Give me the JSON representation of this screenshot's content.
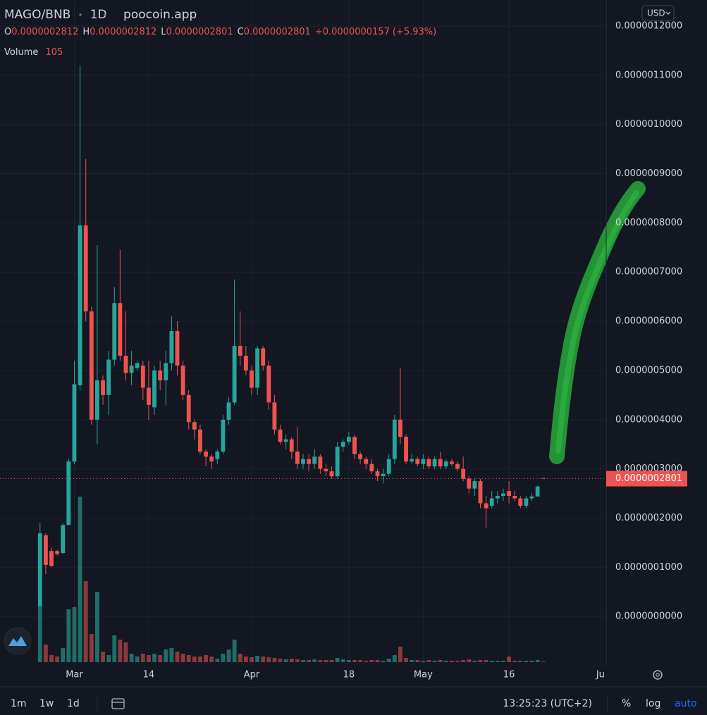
{
  "legend": {
    "symbol": "MAGO/BNB",
    "interval": "1D",
    "source": "poocoin.app",
    "ohlc": [
      {
        "label": "O",
        "value": "0.0000002812"
      },
      {
        "label": "H",
        "value": "0.0000002812"
      },
      {
        "label": "L",
        "value": "0.0000002801"
      },
      {
        "label": "C",
        "value": "0.0000002801"
      }
    ],
    "change": "+0.0000000157",
    "change_pct": "(+5.93%)",
    "volume_label": "Volume"
  },
  "currency": "USD",
  "toolbar": {
    "intervals": [
      "1m",
      "1w",
      "1d"
    ],
    "time": "13:25:23 (UTC+2)",
    "options": [
      "%",
      "log",
      "auto"
    ]
  },
  "chart_data": {
    "type": "candlestick",
    "x": [
      "Feb 23",
      "Feb 24",
      "Feb 25",
      "Feb 26",
      "Feb 27",
      "Feb 28",
      "Mar 1",
      "Mar 2",
      "Mar 3",
      "Mar 4",
      "Mar 5",
      "Mar 6",
      "Mar 7",
      "Mar 8",
      "Mar 9",
      "Mar 10",
      "Mar 11",
      "Mar 12",
      "Mar 13",
      "Mar 14",
      "Mar 15",
      "Mar 16",
      "Mar 17",
      "Mar 18",
      "Mar 19",
      "Mar 20",
      "Mar 21",
      "Mar 22",
      "Mar 23",
      "Mar 24",
      "Mar 25",
      "Mar 26",
      "Mar 27",
      "Mar 28",
      "Mar 29",
      "Mar 30",
      "Mar 31",
      "Apr 1",
      "Apr 2",
      "Apr 3",
      "Apr 4",
      "Apr 5",
      "Apr 6",
      "Apr 7",
      "Apr 8",
      "Apr 9",
      "Apr 10",
      "Apr 11",
      "Apr 12",
      "Apr 13",
      "Apr 14",
      "Apr 15",
      "Apr 16",
      "Apr 17",
      "Apr 18",
      "Apr 19",
      "Apr 20",
      "Apr 21",
      "Apr 22",
      "Apr 23",
      "Apr 24",
      "Apr 25",
      "Apr 26",
      "Apr 27",
      "Apr 28",
      "Apr 29",
      "Apr 30",
      "May 1",
      "May 2",
      "May 3",
      "May 4",
      "May 5",
      "May 6",
      "May 7",
      "May 8",
      "May 9",
      "May 10",
      "May 11",
      "May 12",
      "May 13",
      "May 14",
      "May 15",
      "May 16",
      "May 17",
      "May 18",
      "May 19",
      "May 20",
      "May 21",
      "May 22"
    ],
    "open": [
      2.1e-08,
      1.65e-07,
      1.33e-07,
      1.33e-07,
      1.29e-07,
      1.86e-07,
      3.15e-07,
      4.7e-07,
      7.95e-07,
      6.2e-07,
      4e-07,
      4.8e-07,
      4.5e-07,
      5.22e-07,
      6.37e-07,
      5.3e-07,
      4.95e-07,
      5.05e-07,
      5.1e-07,
      4.65e-07,
      4.25e-07,
      5e-07,
      4.8e-07,
      5.15e-07,
      5.8e-07,
      5.1e-07,
      4.5e-07,
      3.95e-07,
      3.8e-07,
      3.35e-07,
      3.25e-07,
      3.2e-07,
      3.35e-07,
      4e-07,
      4.35e-07,
      5.5e-07,
      5.3e-07,
      5e-07,
      4.65e-07,
      5.45e-07,
      5.1e-07,
      4.35e-07,
      3.8e-07,
      3.55e-07,
      3.6e-07,
      3.35e-07,
      3.1e-07,
      3.2e-07,
      3.1e-07,
      3.25e-07,
      3e-07,
      2.95e-07,
      2.85e-07,
      3.45e-07,
      3.55e-07,
      3.65e-07,
      3.3e-07,
      3.2e-07,
      3.1e-07,
      2.95e-07,
      2.85e-07,
      2.9e-07,
      3.2e-07,
      4e-07,
      3.65e-07,
      3.15e-07,
      3.2e-07,
      3.1e-07,
      3.2e-07,
      3.05e-07,
      3.2e-07,
      3.05e-07,
      3.15e-07,
      3.1e-07,
      3e-07,
      2.8e-07,
      2.6e-07,
      2.75e-07,
      2.3e-07,
      2.25e-07,
      2.4e-07,
      2.45e-07,
      2.55e-07,
      2.45e-07,
      2.4e-07,
      2.25e-07,
      2.4e-07,
      2.44e-07,
      2.812e-07
    ],
    "high": [
      1.9e-07,
      1.69e-07,
      1.4e-07,
      1.36e-07,
      1.9e-07,
      3.2e-07,
      5.2e-07,
      1.12e-06,
      9.3e-07,
      6.3e-07,
      7.55e-07,
      4.9e-07,
      5.4e-07,
      6.7e-07,
      7.45e-07,
      6.2e-07,
      5.4e-07,
      5.2e-07,
      5.2e-07,
      5.2e-07,
      5.1e-07,
      5.2e-07,
      5.4e-07,
      6.1e-07,
      6e-07,
      5.2e-07,
      4.6e-07,
      4e-07,
      3.9e-07,
      3.4e-07,
      3.3e-07,
      3.4e-07,
      4.1e-07,
      4.45e-07,
      6.85e-07,
      6.2e-07,
      5.5e-07,
      5.1e-07,
      5.5e-07,
      5.5e-07,
      5.2e-07,
      4.5e-07,
      3.9e-07,
      3.7e-07,
      3.65e-07,
      3.85e-07,
      3.3e-07,
      3.3e-07,
      3.4e-07,
      3.3e-07,
      3.1e-07,
      3.05e-07,
      3.55e-07,
      3.6e-07,
      3.75e-07,
      3.7e-07,
      3.35e-07,
      3.25e-07,
      3.2e-07,
      3e-07,
      3e-07,
      3.3e-07,
      4.1e-07,
      5.05e-07,
      3.7e-07,
      3.3e-07,
      3.25e-07,
      3.3e-07,
      3.25e-07,
      3.25e-07,
      3.35e-07,
      3.2e-07,
      3.2e-07,
      3.15e-07,
      3.25e-07,
      2.85e-07,
      2.8e-07,
      2.8e-07,
      2.45e-07,
      2.55e-07,
      2.55e-07,
      2.6e-07,
      2.75e-07,
      2.55e-07,
      2.45e-07,
      2.45e-07,
      2.5e-07,
      2.65e-07,
      2.812e-07
    ],
    "low": [
      2.1e-08,
      8.6e-08,
      1e-07,
      1.24e-07,
      1.27e-07,
      1.86e-07,
      3.1e-07,
      4.6e-07,
      6e-07,
      3.9e-07,
      3.5e-07,
      4.3e-07,
      4.1e-07,
      5.1e-07,
      5.2e-07,
      4.8e-07,
      4.7e-07,
      5e-07,
      4.4e-07,
      4e-07,
      4.1e-07,
      4.6e-07,
      4.3e-07,
      5e-07,
      4.9e-07,
      4.4e-07,
      3.8e-07,
      3.6e-07,
      3.3e-07,
      3.05e-07,
      3e-07,
      3.1e-07,
      3.3e-07,
      3.9e-07,
      4.3e-07,
      5.1e-07,
      4.9e-07,
      4.5e-07,
      4.5e-07,
      5e-07,
      4.2e-07,
      3.7e-07,
      3.5e-07,
      3.4e-07,
      3.2e-07,
      3e-07,
      3e-07,
      2.95e-07,
      3e-07,
      2.9e-07,
      2.85e-07,
      2.8e-07,
      2.8e-07,
      3.35e-07,
      3.5e-07,
      3.2e-07,
      3.1e-07,
      3e-07,
      2.9e-07,
      2.75e-07,
      2.7e-07,
      2.85e-07,
      3.1e-07,
      3.5e-07,
      3.1e-07,
      3.1e-07,
      3.05e-07,
      3e-07,
      3e-07,
      3e-07,
      3e-07,
      3e-07,
      3.05e-07,
      2.95e-07,
      2.75e-07,
      2.5e-07,
      2.45e-07,
      2.2e-07,
      1.8e-07,
      2.2e-07,
      2.3e-07,
      2.35e-07,
      2.3e-07,
      2.35e-07,
      2.2e-07,
      2.2e-07,
      2.35e-07,
      2.44e-07,
      2.801e-07
    ],
    "close": [
      1.69e-07,
      1.05e-07,
      1.03e-07,
      1.27e-07,
      1.86e-07,
      3.15e-07,
      4.72e-07,
      7.95e-07,
      6.2e-07,
      4e-07,
      4.8e-07,
      4.5e-07,
      5.22e-07,
      6.37e-07,
      5.3e-07,
      4.95e-07,
      5.1e-07,
      5.15e-07,
      4.65e-07,
      4.3e-07,
      5e-07,
      4.8e-07,
      5.15e-07,
      5.8e-07,
      5.1e-07,
      4.5e-07,
      3.95e-07,
      3.8e-07,
      3.35e-07,
      3.25e-07,
      3.15e-07,
      3.35e-07,
      4e-07,
      4.35e-07,
      5.5e-07,
      5.3e-07,
      5e-07,
      4.65e-07,
      5.45e-07,
      5.1e-07,
      4.35e-07,
      3.8e-07,
      3.55e-07,
      3.6e-07,
      3.35e-07,
      3.1e-07,
      3.2e-07,
      3.1e-07,
      3.25e-07,
      3e-07,
      2.95e-07,
      2.85e-07,
      3.45e-07,
      3.55e-07,
      3.65e-07,
      3.3e-07,
      3.2e-07,
      3.1e-07,
      2.95e-07,
      2.85e-07,
      2.9e-07,
      3.2e-07,
      4e-07,
      3.65e-07,
      3.15e-07,
      3.2e-07,
      3.1e-07,
      3.2e-07,
      3.05e-07,
      3.2e-07,
      3.05e-07,
      3.15e-07,
      3.1e-07,
      3e-07,
      2.8e-07,
      2.6e-07,
      2.75e-07,
      2.3e-07,
      2.2e-07,
      2.4e-07,
      2.45e-07,
      2.5e-07,
      2.45e-07,
      2.4e-07,
      2.25e-07,
      2.4e-07,
      2.44e-07,
      2.644e-07,
      2.801e-07
    ],
    "volume": [
      8000,
      2500,
      1000,
      800,
      2000,
      7500,
      7800,
      23500,
      11500,
      4000,
      10000,
      1500,
      1000,
      3800,
      3200,
      2800,
      1200,
      800,
      1200,
      1000,
      1200,
      1000,
      1800,
      2000,
      1500,
      1200,
      1000,
      800,
      800,
      1000,
      800,
      500,
      1200,
      1800,
      3200,
      1200,
      800,
      700,
      900,
      800,
      700,
      600,
      500,
      400,
      500,
      400,
      300,
      300,
      400,
      300,
      300,
      300,
      600,
      400,
      300,
      300,
      300,
      200,
      300,
      300,
      200,
      500,
      1000,
      2200,
      600,
      300,
      300,
      200,
      300,
      200,
      300,
      200,
      200,
      200,
      300,
      400,
      200,
      300,
      300,
      200,
      200,
      200,
      800,
      200,
      200,
      200,
      200,
      300,
      105
    ],
    "up_color": "#26a69a",
    "down_color": "#ef5350",
    "volume_up_color": "#1f6e68",
    "volume_down_color": "#8a3a3d",
    "last_price_label": "0.0000002801",
    "xlim": [
      "Feb 16",
      "Jun 2"
    ],
    "xticks": [
      {
        "value": "Mar 1",
        "label": "Mar"
      },
      {
        "value": "Mar 14",
        "label": "14"
      },
      {
        "value": "Apr 1",
        "label": "Apr"
      },
      {
        "value": "Apr 18",
        "label": "18"
      },
      {
        "value": "May 1",
        "label": "May"
      },
      {
        "value": "May 16",
        "label": "16"
      },
      {
        "value": "Jun 1",
        "label": "Ju"
      }
    ],
    "ylim": [
      -1e-07,
      1.253e-06
    ],
    "yticks": [
      {
        "value": 0,
        "label": "0.0000000000"
      },
      {
        "value": 1e-07,
        "label": "0.0000001000"
      },
      {
        "value": 2e-07,
        "label": "0.0000002000"
      },
      {
        "value": 3e-07,
        "label": "0.0000003000"
      },
      {
        "value": 4e-07,
        "label": "0.0000004000"
      },
      {
        "value": 5e-07,
        "label": "0.0000005000"
      },
      {
        "value": 6e-07,
        "label": "0.0000006000"
      },
      {
        "value": 7e-07,
        "label": "0.0000007000"
      },
      {
        "value": 8e-07,
        "label": "0.0000008000"
      },
      {
        "value": 9e-07,
        "label": "0.0000009000"
      },
      {
        "value": 1e-06,
        "label": "0.0000010000"
      },
      {
        "value": 1.1e-06,
        "label": "0.0000011000"
      },
      {
        "value": 1.2e-06,
        "label": "0.0000012000"
      }
    ],
    "grid": true
  }
}
